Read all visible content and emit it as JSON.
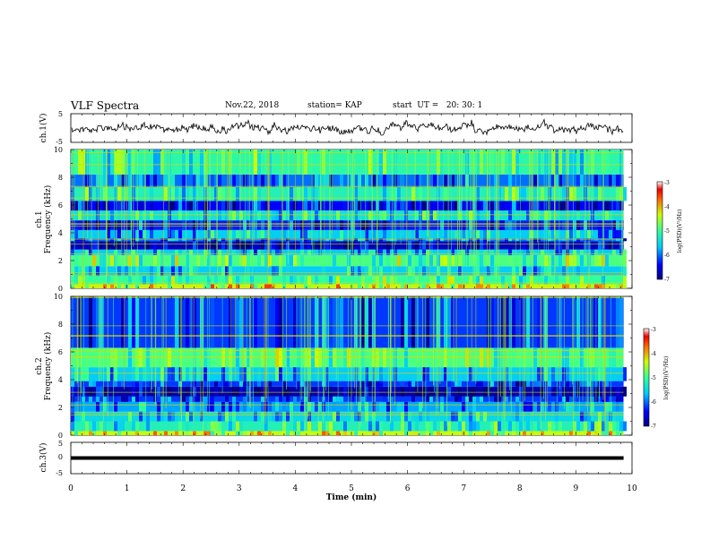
{
  "header": {
    "title": "VLF Spectra",
    "date": "Nov.22, 2018",
    "station": "station= KAP",
    "start": "start  UT =   20: 30: 1"
  },
  "chart_data": [
    {
      "type": "line",
      "panel": "ch1-waveform",
      "ylabel": "ch.1(V)",
      "ylim": [
        -5,
        5
      ],
      "yticks": [
        "5",
        "-5"
      ],
      "xlim": [
        0,
        10
      ],
      "color": "#000000"
    },
    {
      "type": "heatmap",
      "panel": "ch1-spectrogram",
      "ylabel_ch": "ch.1",
      "ylabel": "Frequency (kHz)",
      "ylim": [
        0,
        10
      ],
      "yticks": [
        "0",
        "2",
        "4",
        "6",
        "8",
        "10"
      ],
      "xlim": [
        0,
        9.85
      ],
      "bands": [
        {
          "from": 0.0,
          "to": 0.3,
          "level": -4.3
        },
        {
          "from": 0.3,
          "to": 0.9,
          "level": -5.0
        },
        {
          "from": 0.9,
          "to": 1.6,
          "level": -5.6
        },
        {
          "from": 1.6,
          "to": 2.4,
          "level": -4.9
        },
        {
          "from": 2.4,
          "to": 2.8,
          "level": -5.6
        },
        {
          "from": 2.8,
          "to": 3.4,
          "level": -6.7
        },
        {
          "from": 3.4,
          "to": 3.6,
          "level": -6.0
        },
        {
          "from": 3.6,
          "to": 4.2,
          "level": -5.6
        },
        {
          "from": 4.2,
          "to": 4.9,
          "level": -6.3
        },
        {
          "from": 4.9,
          "to": 5.6,
          "level": -5.4
        },
        {
          "from": 5.6,
          "to": 6.3,
          "level": -6.4
        },
        {
          "from": 6.3,
          "to": 7.3,
          "level": -5.2
        },
        {
          "from": 7.3,
          "to": 8.2,
          "level": -6.0
        },
        {
          "from": 8.2,
          "to": 10.0,
          "level": -5.1
        }
      ],
      "colorbar": {
        "label": "log(PSD)(V²/Hz)",
        "range": [
          -7,
          -3
        ],
        "ticks": [
          "-3",
          "-4",
          "-5",
          "-6",
          "-7"
        ]
      }
    },
    {
      "type": "heatmap",
      "panel": "ch2-spectrogram",
      "ylabel_ch": "ch.2",
      "ylabel": "Frequency (kHz)",
      "ylim": [
        0,
        10
      ],
      "yticks": [
        "0",
        "2",
        "4",
        "6",
        "8",
        "10"
      ],
      "xlim": [
        0,
        9.85
      ],
      "bands": [
        {
          "from": 0.0,
          "to": 0.3,
          "level": -4.4
        },
        {
          "from": 0.3,
          "to": 1.0,
          "level": -5.2
        },
        {
          "from": 1.0,
          "to": 1.7,
          "level": -5.5
        },
        {
          "from": 1.7,
          "to": 2.4,
          "level": -5.8
        },
        {
          "from": 2.4,
          "to": 2.8,
          "level": -6.2
        },
        {
          "from": 2.8,
          "to": 3.5,
          "level": -6.8
        },
        {
          "from": 3.5,
          "to": 3.9,
          "level": -6.2
        },
        {
          "from": 3.9,
          "to": 4.9,
          "level": -5.6
        },
        {
          "from": 4.9,
          "to": 6.3,
          "level": -4.9
        },
        {
          "from": 6.3,
          "to": 10.0,
          "level": -6.2
        }
      ],
      "colorbar": {
        "label": "log(PSD)(V²/Hz)",
        "range": [
          -7,
          -3
        ],
        "ticks": [
          "-3",
          "-4",
          "-5",
          "-6",
          "-7"
        ]
      }
    },
    {
      "type": "line",
      "panel": "ch3-waveform",
      "ylabel": "ch.3(V)",
      "ylim": [
        -5,
        5
      ],
      "yticks": [
        "5",
        "0",
        "-5"
      ],
      "xlim": [
        0,
        10
      ],
      "x": [
        0,
        9.85
      ],
      "y": [
        0.0,
        0.0
      ],
      "color": "#000000",
      "xlabel": "Time (min)",
      "xticks": [
        "0",
        "1",
        "2",
        "3",
        "4",
        "5",
        "6",
        "7",
        "8",
        "9",
        "10"
      ]
    }
  ]
}
